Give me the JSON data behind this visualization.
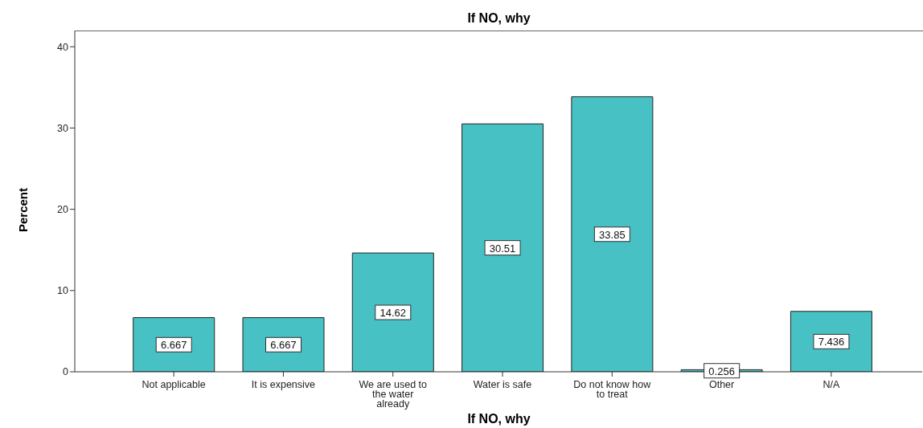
{
  "chart_data": {
    "type": "bar",
    "title": "If NO, why",
    "xlabel": "If NO, why",
    "ylabel": "Percent",
    "categories": [
      "Not applicable",
      "It is expensive",
      "We are used to the water already",
      "Water is safe",
      "Do not know how to treat",
      "Other",
      "N/A"
    ],
    "values": [
      6.667,
      6.667,
      14.62,
      30.51,
      33.85,
      0.256,
      7.436
    ],
    "color": "#48c1c5",
    "ylim": [
      0,
      42
    ],
    "yticks": [
      0,
      10,
      20,
      30,
      40
    ],
    "data_labels": true,
    "grid": false
  }
}
